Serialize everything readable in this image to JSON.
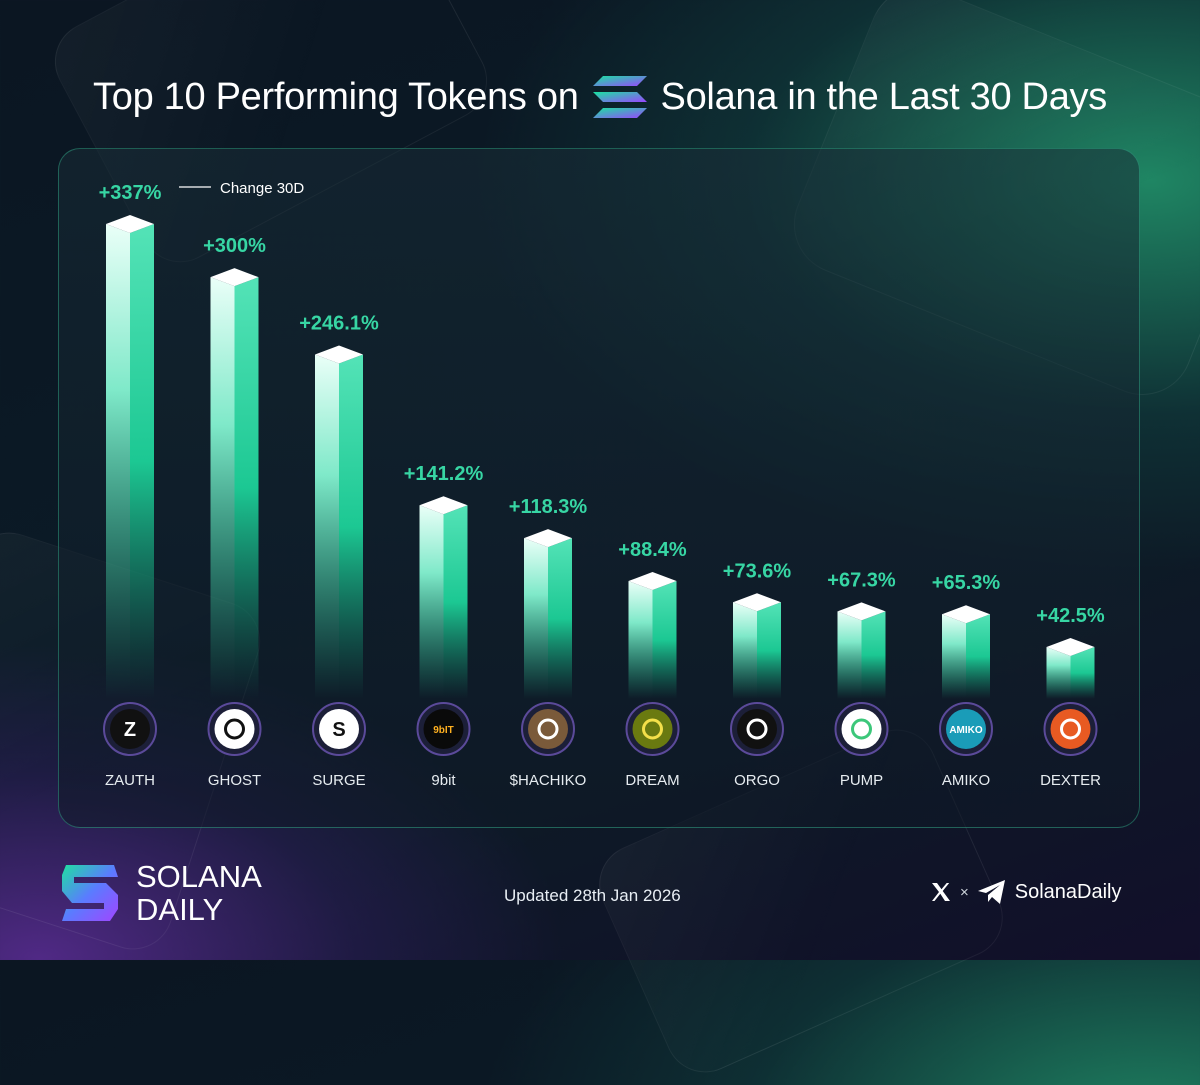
{
  "header": {
    "title_before": "Top 10 Performing Tokens on",
    "title_after": "Solana in the Last 30 Days"
  },
  "colors": {
    "bar_top": "#eafff8",
    "bar_bottom": "#1fd39a",
    "label": "#37d6a4",
    "panel_border": "#2fd9a6"
  },
  "chart_data": {
    "type": "bar",
    "legend": "Change 30D",
    "categories": [
      "ZAUTH",
      "GHOST",
      "SURGE",
      "9bit",
      "$HACHIKO",
      "DREAM",
      "ORGO",
      "PUMP",
      "AMIKO",
      "DEXTER"
    ],
    "values": [
      337,
      300,
      246.1,
      141.2,
      118.3,
      88.4,
      73.6,
      67.3,
      65.3,
      42.5
    ],
    "value_labels": [
      "+337%",
      "+300%",
      "+246.1%",
      "+141.2%",
      "+118.3%",
      "+88.4%",
      "+73.6%",
      "+67.3%",
      "+65.3%",
      "+42.5%"
    ],
    "icons": [
      "zauth-icon",
      "ghost-icon",
      "surge-icon",
      "9bit-icon",
      "hachiko-icon",
      "dream-icon",
      "orgo-icon",
      "pump-icon",
      "amiko-icon",
      "dexter-icon"
    ],
    "icon_text": [
      "Z",
      "",
      "S",
      "9bIT",
      "",
      "",
      "",
      "",
      "AMIKO",
      ""
    ]
  },
  "footer": {
    "brand_line1": "SOLANA",
    "brand_line2": "DAILY",
    "updated": "Updated 28th Jan 2026",
    "times": "×",
    "handle": "SolanaDaily"
  }
}
